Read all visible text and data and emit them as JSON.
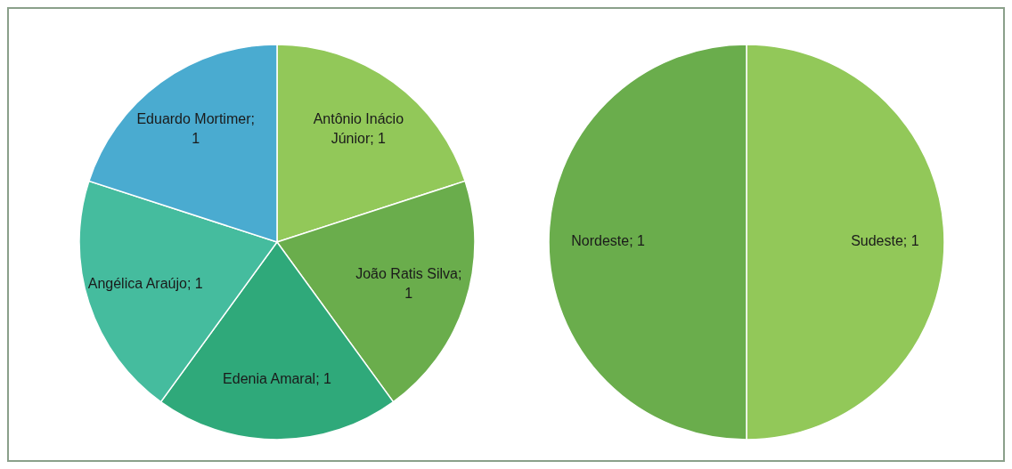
{
  "chart_data": [
    {
      "type": "pie",
      "categories": [
        null,
        null,
        null,
        null,
        null
      ],
      "values": [
        1,
        1,
        1,
        1,
        1
      ],
      "value_labels": [
        "Antônio Inácio Júnior; 1",
        "João Ratis Silva; 1",
        "Edenia Amaral; 1",
        "Angélica Araújo; 1",
        "Eduardo Mortimer; 1"
      ],
      "colors": [
        "#92c859",
        "#6aad4c",
        "#2fa97a",
        "#45bc9e",
        "#4aabd0"
      ]
    },
    {
      "type": "pie",
      "categories": [
        null,
        null
      ],
      "values": [
        1,
        1
      ],
      "value_labels": [
        "Sudeste; 1",
        "Nordeste; 1"
      ],
      "colors": [
        "#92c859",
        "#6aad4c"
      ]
    }
  ]
}
